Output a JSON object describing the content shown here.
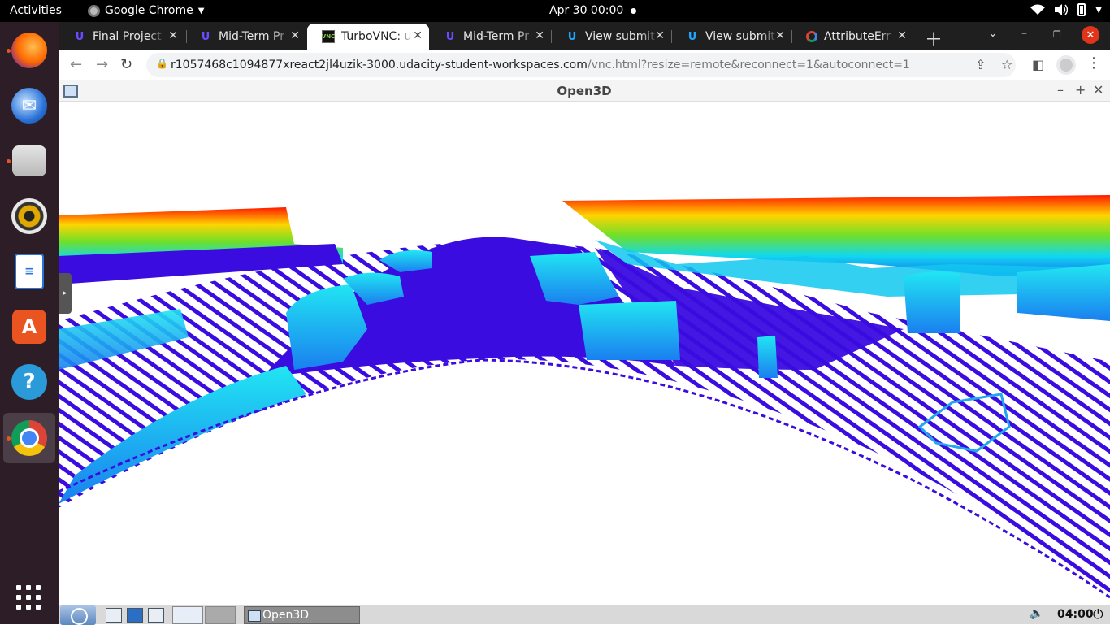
{
  "topbar": {
    "activities": "Activities",
    "app_name": "Google Chrome",
    "datetime": "Apr 30  00:00",
    "tray_icons": [
      "wifi-icon",
      "volume-icon",
      "battery-icon",
      "menu-caret-icon"
    ]
  },
  "dock": {
    "apps": [
      {
        "name": "Firefox",
        "icon": "firefox-icon",
        "running": true
      },
      {
        "name": "Thunderbird",
        "icon": "thunderbird-icon",
        "running": false
      },
      {
        "name": "Files",
        "icon": "files-icon",
        "running": true
      },
      {
        "name": "Rhythmbox",
        "icon": "rhythmbox-icon",
        "running": false
      },
      {
        "name": "LibreOffice Writer",
        "icon": "writer-icon",
        "running": false
      },
      {
        "name": "Ubuntu Software",
        "icon": "software-icon",
        "running": false
      },
      {
        "name": "Help",
        "icon": "help-icon",
        "running": false
      },
      {
        "name": "Google Chrome",
        "icon": "chrome-icon",
        "running": true,
        "active": true
      }
    ],
    "show_apps_icon": "app-grid-icon"
  },
  "browser": {
    "tabs": [
      {
        "title": "Final Project",
        "favicon": "udacity-icon",
        "active": false
      },
      {
        "title": "Mid-Term Pr",
        "favicon": "udacity-icon",
        "active": false
      },
      {
        "title": "TurboVNC: u",
        "favicon": "turbovnc-icon",
        "active": true
      },
      {
        "title": "Mid-Term Pr",
        "favicon": "udacity-icon",
        "active": false
      },
      {
        "title": "View submit",
        "favicon": "udacity-blue-icon",
        "active": false
      },
      {
        "title": "View submit",
        "favicon": "udacity-blue-icon",
        "active": false
      },
      {
        "title": "AttributeErr",
        "favicon": "google-icon",
        "active": false
      }
    ],
    "url_host": "r1057468c1094877xreact2jl4uzik-3000.udacity-student-workspaces.com",
    "url_path": "/vnc.html?resize=remote&reconnect=1&autoconnect=1",
    "vnc_label": "VNC"
  },
  "open3d": {
    "title": "Open3D"
  },
  "vnc_panel": {
    "task_label": "Open3D",
    "clock": "04:00"
  },
  "colors": {
    "topbar": "#000000",
    "dock": "#2c1d27",
    "tabstrip": "#1f1f1f",
    "ubuntu_orange": "#e95420",
    "chrome_close": "#e0341b",
    "pointcloud_low": "#3a0ce0",
    "pointcloud_mid": "#10d8f0",
    "pointcloud_high": "#ff1a00"
  }
}
